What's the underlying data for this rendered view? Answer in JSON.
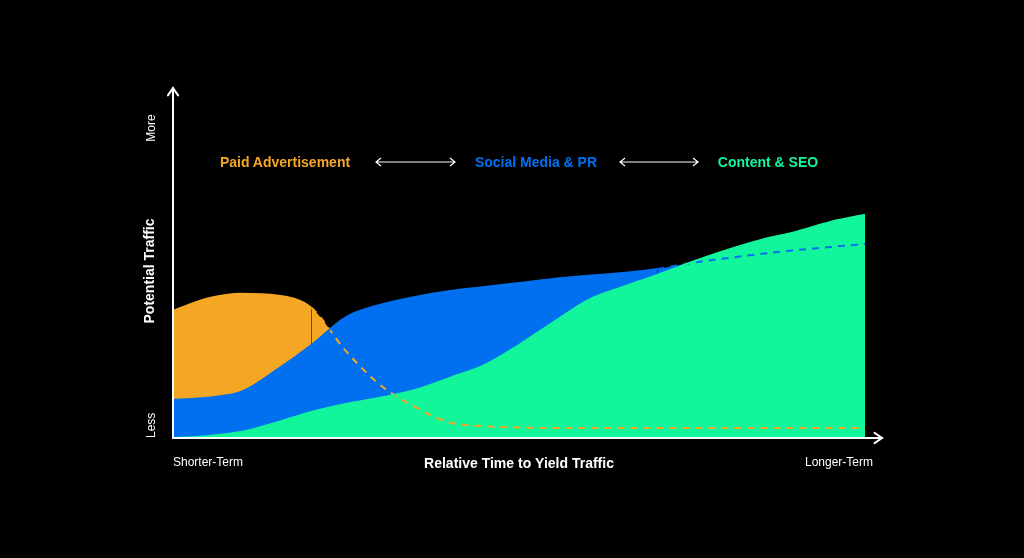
{
  "chart_data": {
    "type": "area",
    "x_label": "Relative Time to Yield Traffic",
    "y_label": "Potential Traffic",
    "x": [
      0,
      5,
      10,
      15,
      20,
      25,
      30,
      35,
      40,
      45,
      50,
      55,
      60,
      65,
      70,
      75,
      80,
      85,
      90,
      95,
      100
    ],
    "xlim": [
      0,
      100
    ],
    "xticks": [
      {
        "value": 0,
        "label": "Shorter-Term"
      },
      {
        "value": 100,
        "label": "Longer-Term"
      }
    ],
    "ylim": [
      0,
      100
    ],
    "yticks": [
      {
        "value": 0,
        "label": "Less"
      },
      {
        "value": 100,
        "label": "More"
      }
    ],
    "grid": false,
    "legend": "top",
    "series": [
      {
        "name": "Paid Advertisement",
        "color": "#f5a623",
        "line_style": "dashed",
        "values": [
          41,
          45,
          46.5,
          46,
          42,
          28,
          17,
          10,
          5,
          3.8,
          3.4,
          3.2,
          3.2,
          3.2,
          3.2,
          3.2,
          3.2,
          3.2,
          3.2,
          3.2,
          3.2
        ]
      },
      {
        "name": "Social Media & PR",
        "color": "#0070f0",
        "line_style": "dashed",
        "values": [
          12.3,
          13,
          15,
          22,
          30,
          39,
          43,
          45.5,
          47.4,
          48.7,
          50,
          51.3,
          52.3,
          53.2,
          54.5,
          56.5,
          58,
          59.4,
          60.6,
          61.6,
          62.6
        ]
      },
      {
        "name": "Content & SEO",
        "color": "#12f59b",
        "line_style": "solid",
        "values": [
          0,
          0.6,
          2,
          5,
          8.4,
          11,
          13,
          15.5,
          19.4,
          23.5,
          30,
          37.4,
          44.5,
          48.7,
          52.6,
          56.8,
          60.6,
          63.9,
          66.5,
          69.7,
          72
        ]
      }
    ]
  }
}
